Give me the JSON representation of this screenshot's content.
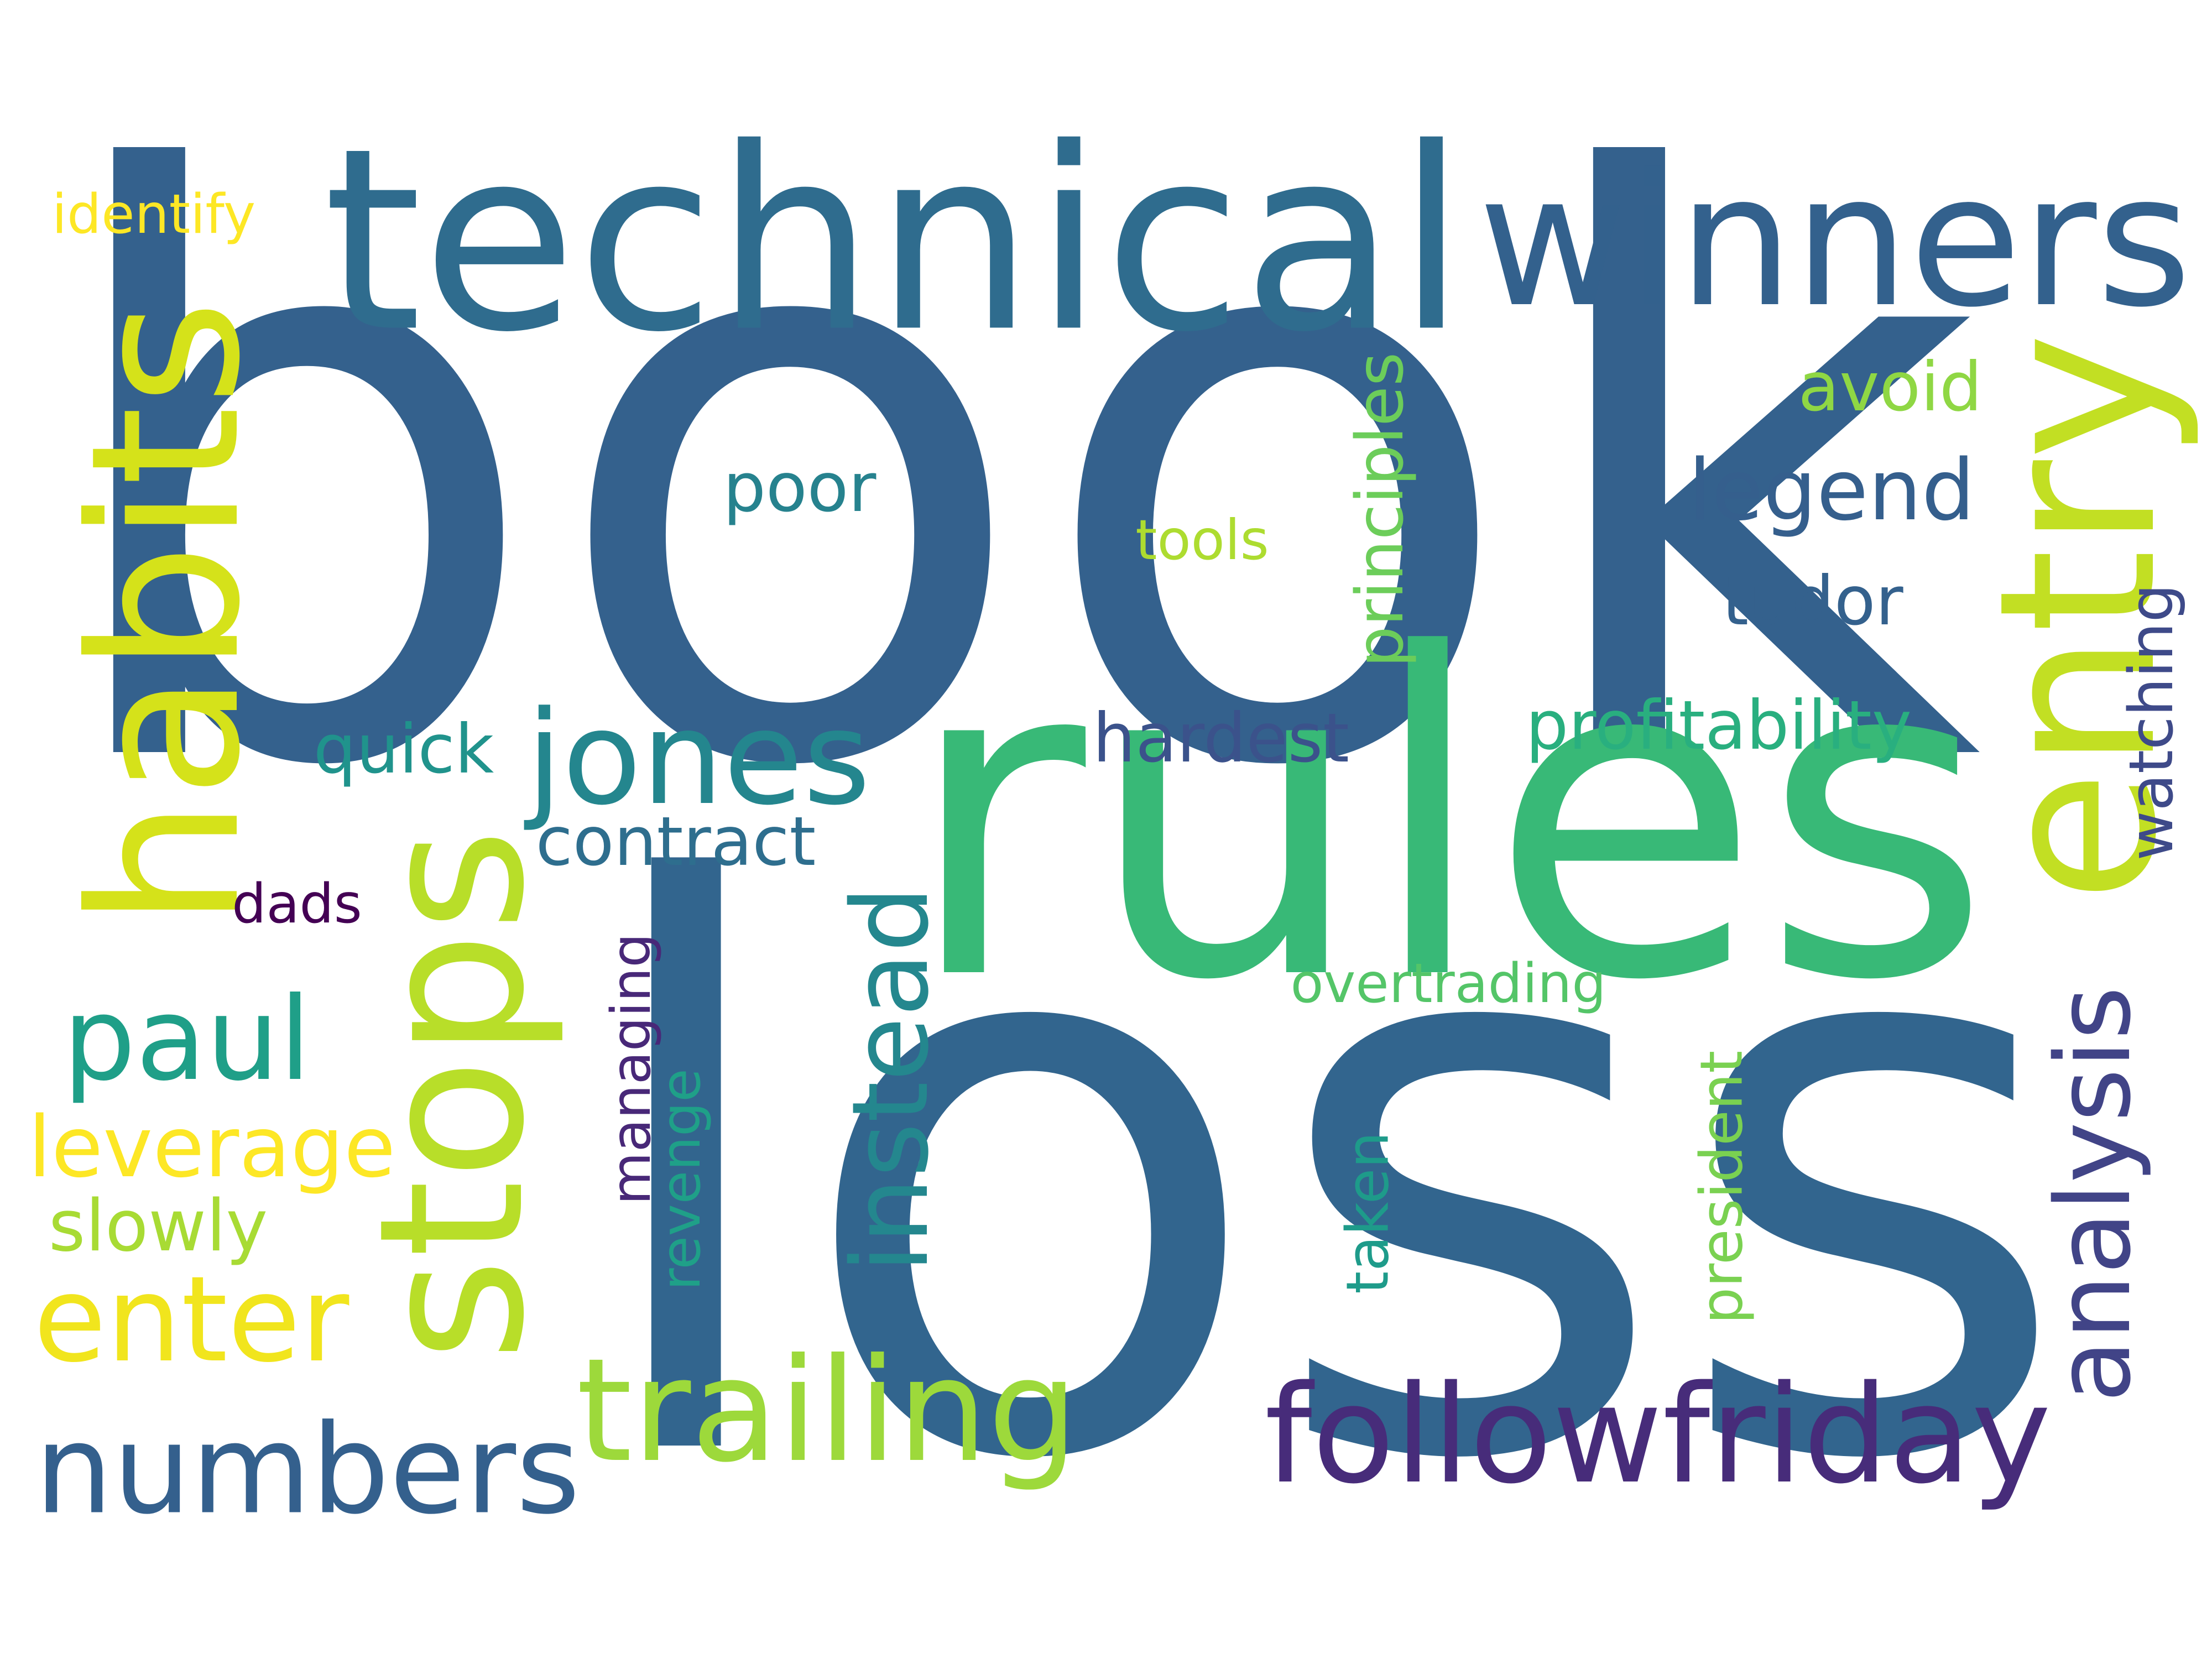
{
  "words": [
    {
      "text": "book",
      "color": "#34618d"
    },
    {
      "text": "loss",
      "color": "#32658e"
    },
    {
      "text": "rules",
      "color": "#38b977"
    },
    {
      "text": "technical",
      "color": "#2f6c8e"
    },
    {
      "text": "winners",
      "color": "#33618d"
    },
    {
      "text": "habits",
      "color": "#d5e21a"
    },
    {
      "text": "entry",
      "color": "#c2df23"
    },
    {
      "text": "stops",
      "color": "#b8de29"
    },
    {
      "text": "jones",
      "color": "#24868e"
    },
    {
      "text": "trailing",
      "color": "#9dd93b"
    },
    {
      "text": "followfriday",
      "color": "#472c7a"
    },
    {
      "text": "numbers",
      "color": "#34608d"
    },
    {
      "text": "analysis",
      "color": "#414487"
    },
    {
      "text": "instead",
      "color": "#24878e"
    },
    {
      "text": "paul",
      "color": "#1f9f88"
    },
    {
      "text": "enter",
      "color": "#f1e51d"
    },
    {
      "text": "leverage",
      "color": "#fde725"
    },
    {
      "text": "slowly",
      "color": "#a8db34"
    },
    {
      "text": "contract",
      "color": "#2e6e8e"
    },
    {
      "text": "hardest",
      "color": "#3b528b"
    },
    {
      "text": "profitability",
      "color": "#29af7f"
    },
    {
      "text": "legend",
      "color": "#355f8d"
    },
    {
      "text": "tudor",
      "color": "#34618d"
    },
    {
      "text": "avoid",
      "color": "#8fd744"
    },
    {
      "text": "poor",
      "color": "#26828e"
    },
    {
      "text": "tools",
      "color": "#addc30"
    },
    {
      "text": "principles",
      "color": "#6ccd5a"
    },
    {
      "text": "quick",
      "color": "#20938c"
    },
    {
      "text": "watching",
      "color": "#3e4a89"
    },
    {
      "text": "overtrading",
      "color": "#54c568"
    },
    {
      "text": "managing",
      "color": "#482878"
    },
    {
      "text": "revenge",
      "color": "#1fa088"
    },
    {
      "text": "taken",
      "color": "#1e9b8a"
    },
    {
      "text": "president",
      "color": "#7ad151"
    },
    {
      "text": "dads",
      "color": "#440154"
    },
    {
      "text": "identify",
      "color": "#fde725"
    }
  ]
}
